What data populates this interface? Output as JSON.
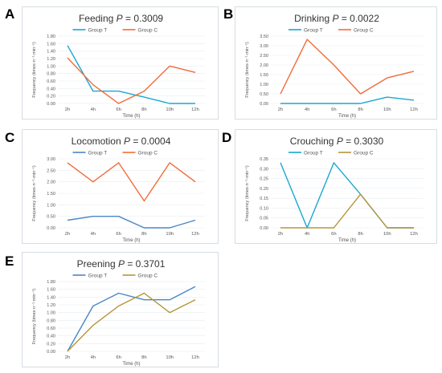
{
  "chart_data": [
    {
      "type": "line",
      "letter": "A",
      "title": "Feeding",
      "p_label": "P",
      "p_value": " = 0.3009",
      "xlabel": "Time (h)",
      "ylabel": "Frequency (times·n⁻¹·min⁻¹)",
      "categories": [
        "2h",
        "4h",
        "6h",
        "8h",
        "10h",
        "12h"
      ],
      "yticks": [
        "0.00",
        "0.20",
        "0.40",
        "0.60",
        "0.80",
        "1.00",
        "1.20",
        "1.40",
        "1.60",
        "1.80"
      ],
      "ylim": [
        0,
        1.8
      ],
      "legend": "top-center",
      "series": [
        {
          "name": "Group T",
          "color": "#1aa7d1",
          "values": [
            1.55,
            0.33,
            0.33,
            0.17,
            0.0,
            0.0
          ]
        },
        {
          "name": "Group C",
          "color": "#f36b3a",
          "values": [
            1.22,
            0.5,
            0.0,
            0.33,
            1.0,
            0.83
          ]
        }
      ]
    },
    {
      "type": "line",
      "letter": "B",
      "title": "Drinking",
      "p_label": "P",
      "p_value": " = 0.0022",
      "xlabel": "Time (h)",
      "ylabel": "Frequency (times·n⁻¹·min⁻¹)",
      "categories": [
        "2h",
        "4h",
        "6h",
        "8h",
        "10h",
        "12h"
      ],
      "yticks": [
        "0.00",
        "0.50",
        "1.00",
        "1.50",
        "2.00",
        "2.50",
        "3.00",
        "3.50"
      ],
      "ylim": [
        0,
        3.5
      ],
      "legend": "top-center",
      "series": [
        {
          "name": "Group T",
          "color": "#1aa7d1",
          "values": [
            0.0,
            0.0,
            0.0,
            0.0,
            0.33,
            0.17
          ]
        },
        {
          "name": "Group C",
          "color": "#f36b3a",
          "values": [
            0.5,
            3.33,
            2.0,
            0.5,
            1.33,
            1.67
          ]
        }
      ]
    },
    {
      "type": "line",
      "letter": "C",
      "title": "Locomotion",
      "p_label": "P",
      "p_value": " = 0.0004",
      "xlabel": "Time (h)",
      "ylabel": "Frequency (times·n⁻¹·min⁻¹)",
      "categories": [
        "2h",
        "4h",
        "6h",
        "8h",
        "10h",
        "12h"
      ],
      "yticks": [
        "0.00",
        "0.50",
        "1.00",
        "1.50",
        "2.00",
        "2.50",
        "3.00"
      ],
      "ylim": [
        0,
        3.0
      ],
      "legend": "top-center",
      "series": [
        {
          "name": "Group T",
          "color": "#4a86c6",
          "values": [
            0.33,
            0.5,
            0.5,
            0.0,
            0.0,
            0.33
          ]
        },
        {
          "name": "Group C",
          "color": "#f36b3a",
          "values": [
            2.83,
            2.0,
            2.83,
            1.17,
            2.83,
            2.0
          ]
        }
      ]
    },
    {
      "type": "line",
      "letter": "D",
      "title": "Crouching",
      "p_label": "P",
      "p_value": " = 0.3030",
      "xlabel": "Time (h)",
      "ylabel": "Frequency (times·n⁻¹·min⁻¹)",
      "categories": [
        "2h",
        "4h",
        "6h",
        "8h",
        "10h",
        "12h"
      ],
      "yticks": [
        "0.00",
        "0.05",
        "0.10",
        "0.15",
        "0.20",
        "0.25",
        "0.30",
        "0.35"
      ],
      "ylim": [
        0,
        0.35
      ],
      "legend": "top-center",
      "series": [
        {
          "name": "Group T",
          "color": "#1aa7d1",
          "values": [
            0.33,
            0.0,
            0.33,
            0.17,
            0.0,
            0.0
          ]
        },
        {
          "name": "Group C",
          "color": "#b5953a",
          "values": [
            0.0,
            0.0,
            0.0,
            0.17,
            0.0,
            0.0
          ]
        }
      ]
    },
    {
      "type": "line",
      "letter": "E",
      "title": "Preening",
      "p_label": "P",
      "p_value": " = 0.3701",
      "xlabel": "Time (h)",
      "ylabel": "Frequency (times·n⁻¹·min⁻¹)",
      "categories": [
        "2h",
        "4h",
        "6h",
        "8h",
        "10h",
        "12h"
      ],
      "yticks": [
        "0.00",
        "0.20",
        "0.40",
        "0.60",
        "0.80",
        "1.00",
        "1.20",
        "1.40",
        "1.60",
        "1.80"
      ],
      "ylim": [
        0,
        1.8
      ],
      "legend": "top-center",
      "series": [
        {
          "name": "Group T",
          "color": "#4a86c6",
          "values": [
            0.0,
            1.17,
            1.5,
            1.33,
            1.33,
            1.67
          ]
        },
        {
          "name": "Group C",
          "color": "#b5953a",
          "values": [
            0.0,
            0.67,
            1.17,
            1.5,
            1.0,
            1.33
          ]
        }
      ]
    }
  ]
}
